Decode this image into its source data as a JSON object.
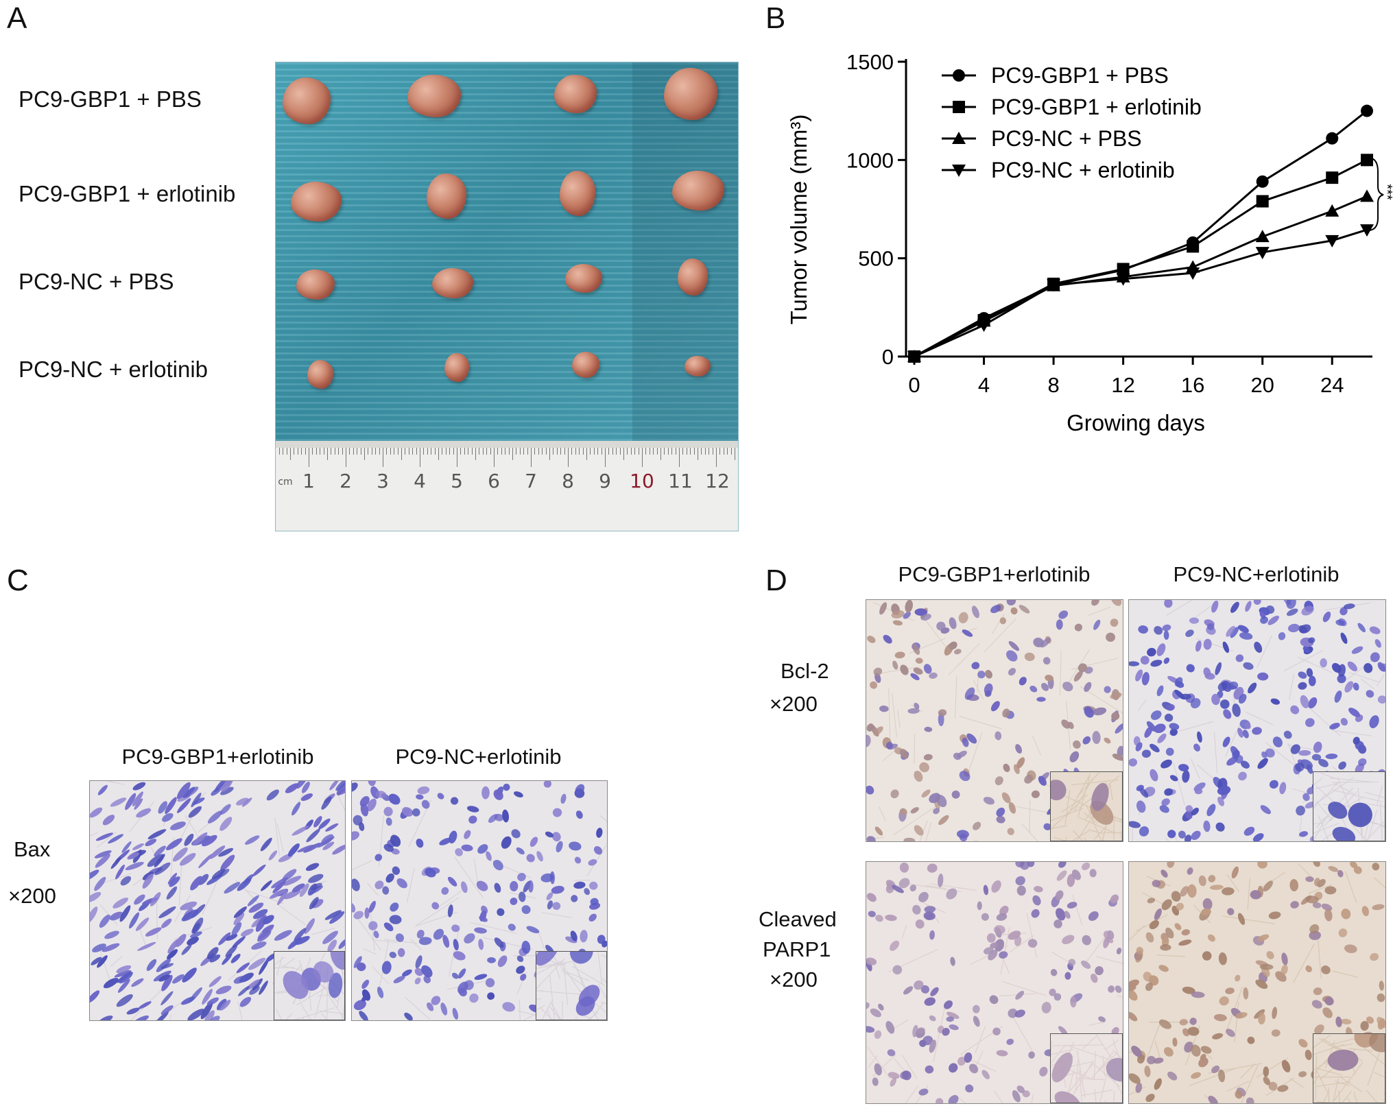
{
  "panels": {
    "A": {
      "letter": "A",
      "row_labels": [
        "PC9-GBP1 + PBS",
        "PC9-GBP1 + erlotinib",
        "PC9-NC + PBS",
        "PC9-NC + erlotinib"
      ],
      "ruler": {
        "unit": "cm",
        "numbers": [
          "1",
          "2",
          "3",
          "4",
          "5",
          "6",
          "7",
          "8",
          "9",
          "10",
          "11",
          "12"
        ]
      }
    },
    "B": {
      "letter": "B"
    },
    "C": {
      "letter": "C",
      "col_labels": [
        "PC9-GBP1+erlotinib",
        "PC9-NC+erlotinib"
      ],
      "row_label": "Bax",
      "magnification": "×200"
    },
    "D": {
      "letter": "D",
      "col_labels": [
        "PC9-GBP1+erlotinib",
        "PC9-NC+erlotinib"
      ],
      "rows": [
        {
          "label": "Bcl-2",
          "magnification": "×200"
        },
        {
          "label_line1": "Cleaved",
          "label_line2": "PARP1",
          "magnification": "×200"
        }
      ]
    }
  },
  "chart_data": {
    "type": "line",
    "xlabel": "Growing days",
    "ylabel": "Tumor volume (mm³)",
    "xticks": [
      0,
      4,
      8,
      12,
      16,
      20,
      24
    ],
    "yticks": [
      0,
      500,
      1000,
      1500
    ],
    "xlim": [
      0,
      26
    ],
    "ylim": [
      0,
      1500
    ],
    "x": [
      0,
      4,
      8,
      12,
      16,
      20,
      24,
      26
    ],
    "series": [
      {
        "name": "PC9-GBP1 + PBS",
        "marker": "circle",
        "values": [
          0,
          195,
          365,
          440,
          580,
          890,
          1110,
          1250
        ]
      },
      {
        "name": "PC9-GBP1 + erlotinib",
        "marker": "square",
        "values": [
          0,
          185,
          370,
          445,
          560,
          790,
          910,
          1000
        ]
      },
      {
        "name": "PC9-NC + PBS",
        "marker": "triangle-up",
        "values": [
          0,
          180,
          360,
          405,
          455,
          610,
          740,
          815
        ]
      },
      {
        "name": "PC9-NC + erlotinib",
        "marker": "triangle-down",
        "values": [
          0,
          160,
          365,
          395,
          425,
          530,
          590,
          645
        ]
      }
    ],
    "significance": "***",
    "legend_position": "top-left",
    "grid": false,
    "colors": {
      "line": "#000000"
    }
  }
}
